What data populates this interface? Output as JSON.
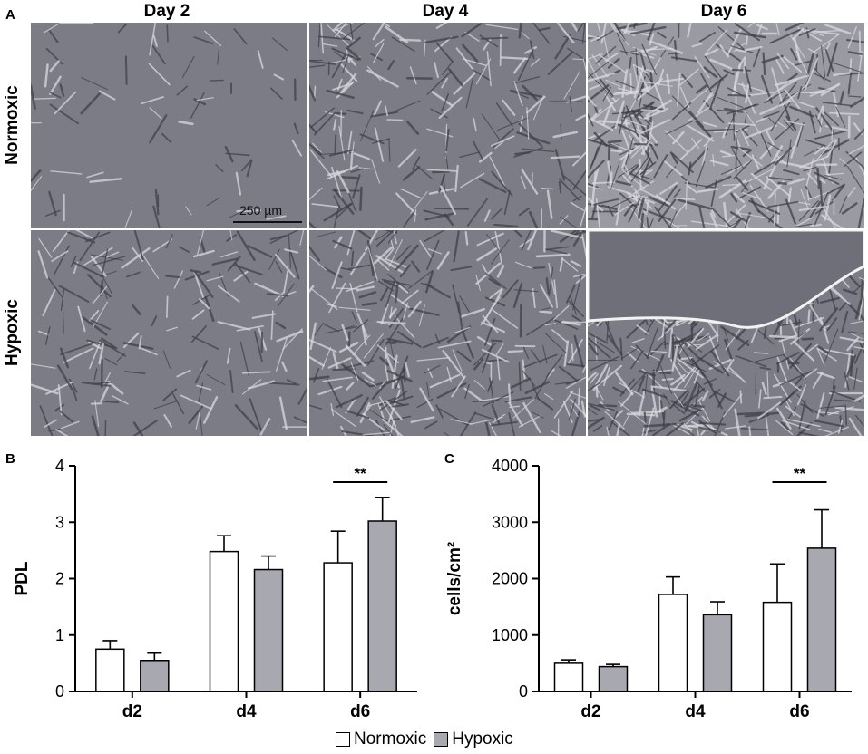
{
  "panels": {
    "a_label": "A",
    "b_label": "B",
    "c_label": "C"
  },
  "micrographs": {
    "columns": [
      "Day 2",
      "Day 4",
      "Day 6"
    ],
    "rows": [
      "Normoxic",
      "Hypoxic"
    ],
    "scale_bar": "250 µm"
  },
  "legend": {
    "normoxic": "Normoxic",
    "hypoxic": "Hypoxic"
  },
  "colors": {
    "normoxic_fill": "#ffffff",
    "hypoxic_fill": "#a7a8b0",
    "bar_stroke": "#000000"
  },
  "chart_data": [
    {
      "type": "bar",
      "panel": "B",
      "categories": [
        "d2",
        "d4",
        "d6"
      ],
      "series": [
        {
          "name": "Normoxic",
          "values": [
            0.75,
            2.48,
            2.28
          ],
          "errors": [
            0.15,
            0.28,
            0.56
          ]
        },
        {
          "name": "Hypoxic",
          "values": [
            0.55,
            2.16,
            3.02
          ],
          "errors": [
            0.13,
            0.24,
            0.42
          ]
        }
      ],
      "ylabel": "PDL",
      "ylim": [
        0,
        4
      ],
      "yticks": [
        0,
        1,
        2,
        3,
        4
      ],
      "significance": {
        "category": "d6",
        "label": "**"
      }
    },
    {
      "type": "bar",
      "panel": "C",
      "categories": [
        "d2",
        "d4",
        "d6"
      ],
      "series": [
        {
          "name": "Normoxic",
          "values": [
            500,
            1720,
            1580
          ],
          "errors": [
            60,
            310,
            680
          ]
        },
        {
          "name": "Hypoxic",
          "values": [
            440,
            1360,
            2540
          ],
          "errors": [
            40,
            230,
            680
          ]
        }
      ],
      "ylabel": "cells/cm²",
      "ylim": [
        0,
        4000
      ],
      "yticks": [
        0,
        1000,
        2000,
        3000,
        4000
      ],
      "significance": {
        "category": "d6",
        "label": "**"
      }
    }
  ]
}
